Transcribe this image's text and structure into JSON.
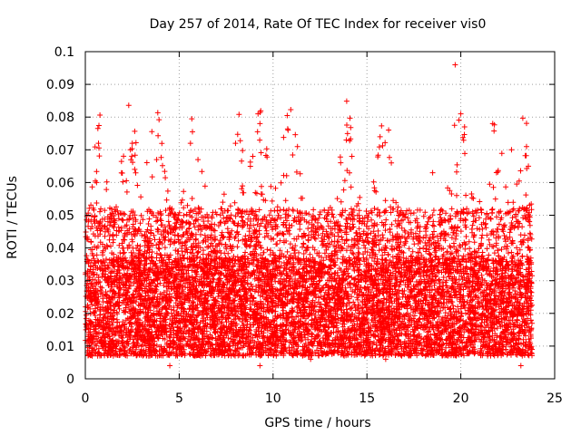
{
  "chart_data": {
    "type": "scatter",
    "title": "Day 257 of 2014, Rate Of TEC Index for receiver vis0",
    "xlabel": "GPS time / hours",
    "ylabel": "ROTI / TECUs",
    "xlim": [
      0,
      25
    ],
    "ylim": [
      0,
      0.1
    ],
    "xticks": [
      0,
      5,
      10,
      15,
      20,
      25
    ],
    "xtick_labels": [
      "0",
      "5",
      "10",
      "15",
      "20",
      "25"
    ],
    "yticks": [
      0,
      0.01,
      0.02,
      0.03,
      0.04,
      0.05,
      0.06,
      0.07,
      0.08,
      0.09,
      0.1
    ],
    "ytick_labels": [
      "0",
      "0.01",
      "0.02",
      "0.03",
      "0.04",
      "0.05",
      "0.06",
      "0.07",
      "0.08",
      "0.09",
      "0.1"
    ],
    "grid": true,
    "marker": "+",
    "marker_color": "#ff0000",
    "series": [
      {
        "name": "ROTI",
        "x_range": [
          0,
          23.8
        ],
        "typical_y_range": [
          0.005,
          0.05
        ],
        "points": [
          [
            0.3,
            0.042
          ],
          [
            0.6,
            0.06
          ],
          [
            0.7,
            0.072
          ],
          [
            2.4,
            0.07
          ],
          [
            2.5,
            0.072
          ],
          [
            3.8,
            0.067
          ],
          [
            5.6,
            0.072
          ],
          [
            6.0,
            0.067
          ],
          [
            8.0,
            0.072
          ],
          [
            9.2,
            0.081
          ],
          [
            9.3,
            0.078
          ],
          [
            10.8,
            0.076
          ],
          [
            11.3,
            0.071
          ],
          [
            13.9,
            0.073
          ],
          [
            14.2,
            0.068
          ],
          [
            15.7,
            0.074
          ],
          [
            16.3,
            0.066
          ],
          [
            19.7,
            0.096
          ],
          [
            20.0,
            0.081
          ],
          [
            20.2,
            0.077
          ],
          [
            21.7,
            0.078
          ],
          [
            22.7,
            0.07
          ],
          [
            23.5,
            0.071
          ],
          [
            23.6,
            0.065
          ],
          [
            18.5,
            0.063
          ],
          [
            4.5,
            0.004
          ],
          [
            9.3,
            0.004
          ],
          [
            23.2,
            0.004
          ],
          [
            12.0,
            0.006
          ],
          [
            16.0,
            0.006
          ]
        ]
      }
    ]
  }
}
